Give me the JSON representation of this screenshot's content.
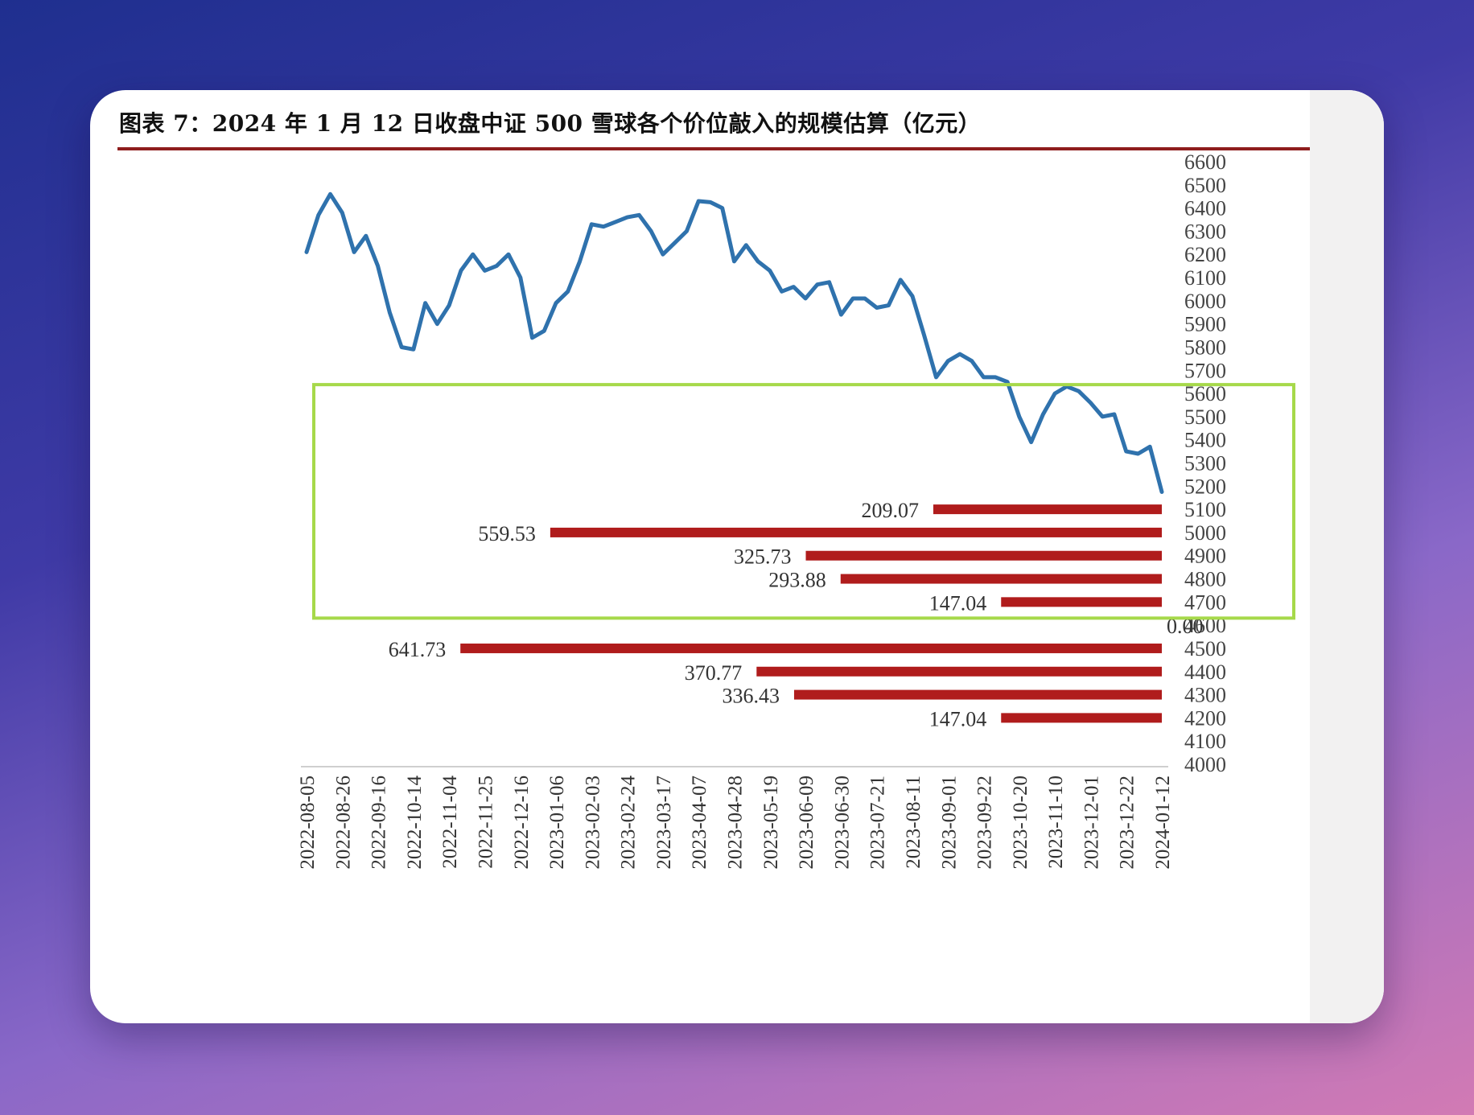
{
  "figure": {
    "title": "图表 7：2024 年 1 月 12 日收盘中证 500 雪球各个价位敲入的规模估算（亿元）"
  },
  "colors": {
    "line": "#2f72ad",
    "bar": "#b01c1c",
    "highlight_box": "#a6d94a",
    "title_rule": "#8e1d1d"
  },
  "chart_data": {
    "type": "line+bar",
    "title": "图表 7：2024 年 1 月 12 日收盘中证 500 雪球各个价位敲入的规模估算（亿元）",
    "y_axis": {
      "ylim": [
        4000,
        6600
      ],
      "ticks": [
        6600,
        6500,
        6400,
        6300,
        6200,
        6100,
        6000,
        5900,
        5800,
        5700,
        5600,
        5500,
        5400,
        5300,
        5200,
        5100,
        5000,
        4900,
        4800,
        4700,
        4600,
        4500,
        4400,
        4300,
        4200,
        4100,
        4000
      ],
      "position": "right"
    },
    "x_axis": {
      "tick_labels": [
        "2022-08-05",
        "2022-08-26",
        "2022-09-16",
        "2022-10-14",
        "2022-11-04",
        "2022-11-25",
        "2022-12-16",
        "2023-01-06",
        "2023-02-03",
        "2023-02-24",
        "2023-03-17",
        "2023-04-07",
        "2023-04-28",
        "2023-05-19",
        "2023-06-09",
        "2023-06-30",
        "2023-07-21",
        "2023-08-11",
        "2023-09-01",
        "2023-09-22",
        "2023-10-20",
        "2023-11-10",
        "2023-12-01",
        "2023-12-22",
        "2024-01-12"
      ]
    },
    "line_series": {
      "values": [
        6210,
        6370,
        6460,
        6380,
        6210,
        6280,
        6150,
        5950,
        5800,
        5790,
        5990,
        5900,
        5980,
        6130,
        6200,
        6130,
        6150,
        6200,
        6100,
        5840,
        5870,
        5990,
        6040,
        6170,
        6330,
        6320,
        6340,
        6360,
        6370,
        6300,
        6200,
        6250,
        6300,
        6430,
        6425,
        6400,
        6170,
        6240,
        6170,
        6130,
        6040,
        6060,
        6010,
        6070,
        6080,
        5940,
        6010,
        6010,
        5970,
        5980,
        6090,
        6020,
        5850,
        5670,
        5740,
        5770,
        5740,
        5670,
        5670,
        5650,
        5500,
        5390,
        5510,
        5600,
        5630,
        5610,
        5560,
        5500,
        5510,
        5350,
        5340,
        5370,
        5175
      ]
    },
    "bars": [
      {
        "level": 5100,
        "value": 209.07,
        "label": "209.07"
      },
      {
        "level": 5000,
        "value": 559.53,
        "label": "559.53"
      },
      {
        "level": 4900,
        "value": 325.73,
        "label": "325.73"
      },
      {
        "level": 4800,
        "value": 293.88,
        "label": "293.88"
      },
      {
        "level": 4700,
        "value": 147.04,
        "label": "147.04"
      },
      {
        "level": 4600,
        "value": 0.0,
        "label": "0.00"
      },
      {
        "level": 4500,
        "value": 641.73,
        "label": "641.73"
      },
      {
        "level": 4400,
        "value": 370.77,
        "label": "370.77"
      },
      {
        "level": 4300,
        "value": 336.43,
        "label": "336.43"
      },
      {
        "level": 4200,
        "value": 147.04,
        "label": "147.04"
      }
    ],
    "highlight_levels": [
      4700,
      5100
    ],
    "grid": false,
    "legend": "none"
  }
}
